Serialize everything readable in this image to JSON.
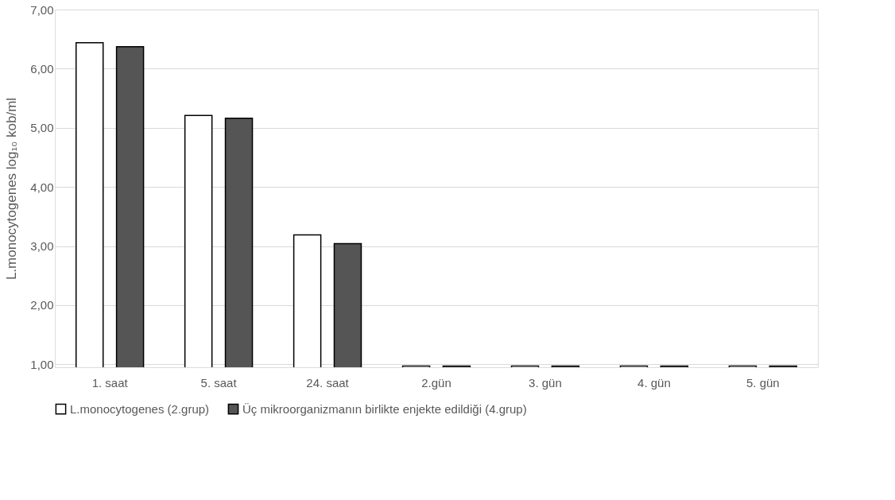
{
  "chart_data": {
    "type": "bar",
    "ylabel": "L.monocytogenes log₁₀ kob/ml",
    "categories": [
      "1. saat",
      "5. saat",
      "24. saat",
      "2.gün",
      "3. gün",
      "4. gün",
      "5. gün"
    ],
    "series": [
      {
        "name": "L.monocytogenes (2.grup)",
        "color": "#ffffff",
        "values": [
          6.44,
          5.21,
          3.19,
          0.97,
          0.97,
          0.97,
          0.97
        ]
      },
      {
        "name": "Üç mikroorganizmanın birlikte enjekte edildiği (4.grup)",
        "color": "#555555",
        "values": [
          6.37,
          5.16,
          3.04,
          0.97,
          0.97,
          0.97,
          0.97
        ]
      }
    ],
    "ylim": [
      0.95,
      7
    ],
    "yticks": [
      {
        "value": 1,
        "label": "1,00"
      },
      {
        "value": 2,
        "label": "2,00"
      },
      {
        "value": 3,
        "label": "3,00"
      },
      {
        "value": 4,
        "label": "4,00"
      },
      {
        "value": 5,
        "label": "5,00"
      },
      {
        "value": 6,
        "label": "6,00"
      },
      {
        "value": 7,
        "label": "7,00"
      }
    ],
    "grid": "y",
    "legend": "bottom"
  }
}
